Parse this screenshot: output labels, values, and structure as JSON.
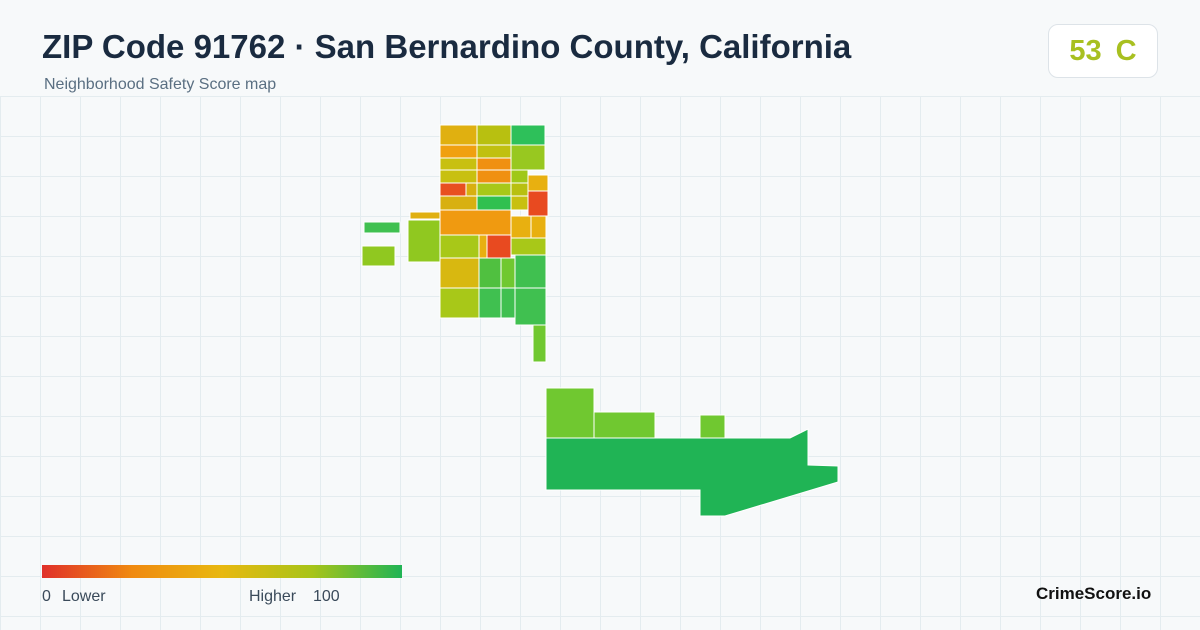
{
  "header": {
    "title": "ZIP Code 91762 · San Bernardino County, California",
    "subtitle": "Neighborhood Safety Score map"
  },
  "score": {
    "value": "53",
    "grade": "C"
  },
  "legend": {
    "min": "0",
    "min_label": "Lower",
    "max_label": "Higher",
    "max": "100"
  },
  "brand": "CrimeScore.io"
}
